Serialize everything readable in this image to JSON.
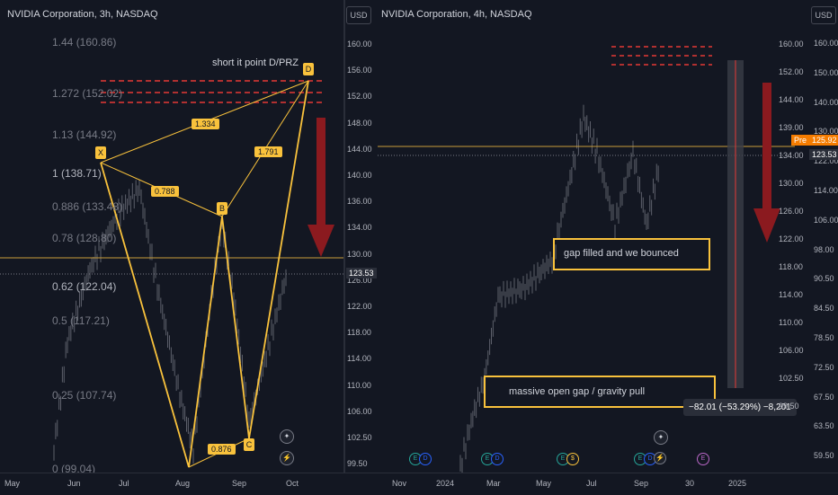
{
  "left": {
    "title": "NVIDIA Corporation, 3h, NASDAQ",
    "currency": "USD",
    "price_ticks": [
      "160.00",
      "156.00",
      "152.00",
      "148.00",
      "144.00",
      "140.00",
      "136.00",
      "134.00",
      "130.00",
      "126.00",
      "122.00",
      "118.00",
      "114.00",
      "110.00",
      "106.00",
      "102.50",
      "99.50"
    ],
    "current_price": "123.53",
    "fib_levels": [
      "1.44 (160.86)",
      "1.272 (152.02)",
      "1.13 (144.92)",
      "1 (138.71)",
      "0.886 (133.48)",
      "0.78 (128.80)",
      "0.62 (122.04)",
      "0.5 (117.21)",
      "0.25 (107.74)",
      "0 (99.04)"
    ],
    "ratios": [
      "1.334",
      "0.788",
      "1.791",
      "0.876"
    ],
    "points": [
      "X",
      "B",
      "C",
      "D"
    ],
    "annotation": "short it point D/PRZ"
  },
  "right": {
    "title": "NVIDIA Corporation, 4h, NASDAQ",
    "currency": "USD",
    "price_ticks_inner": [
      "160.00",
      "152.00",
      "144.00",
      "139.00",
      "134.00",
      "130.00",
      "126.00",
      "122.00",
      "118.00",
      "114.00",
      "110.00",
      "106.00",
      "102.50",
      "99.50"
    ],
    "price_ticks_outer": [
      "160.00",
      "150.00",
      "140.00",
      "130.00",
      "122.00",
      "114.00",
      "106.00",
      "98.00",
      "90.50",
      "84.50",
      "78.50",
      "72.50",
      "67.50",
      "63.50",
      "59.50"
    ],
    "pre_label": "Pre",
    "pre_price": "125.92",
    "current_price": "123.53",
    "box1": "gap filled and we bounced",
    "box2": "massive open gap / gravity pull",
    "measure": "−82.01 (−53.29%) −8,201"
  },
  "x_axis": {
    "left": [
      "May",
      "Jun",
      "Jul",
      "Aug",
      "Sep",
      "Oct"
    ],
    "right": [
      "Nov",
      "2024",
      "Mar",
      "May",
      "Jul",
      "Sep",
      "30",
      "2025"
    ]
  },
  "events": {
    "E": "E",
    "D": "D",
    "S": "$",
    "F": "E"
  },
  "colors": {
    "background": "#131722",
    "pattern": "#f9c23c",
    "arrow": "#8b1a1f",
    "dashes": "#e53935",
    "up": "#26a69a",
    "text": "#d1d4dc"
  }
}
